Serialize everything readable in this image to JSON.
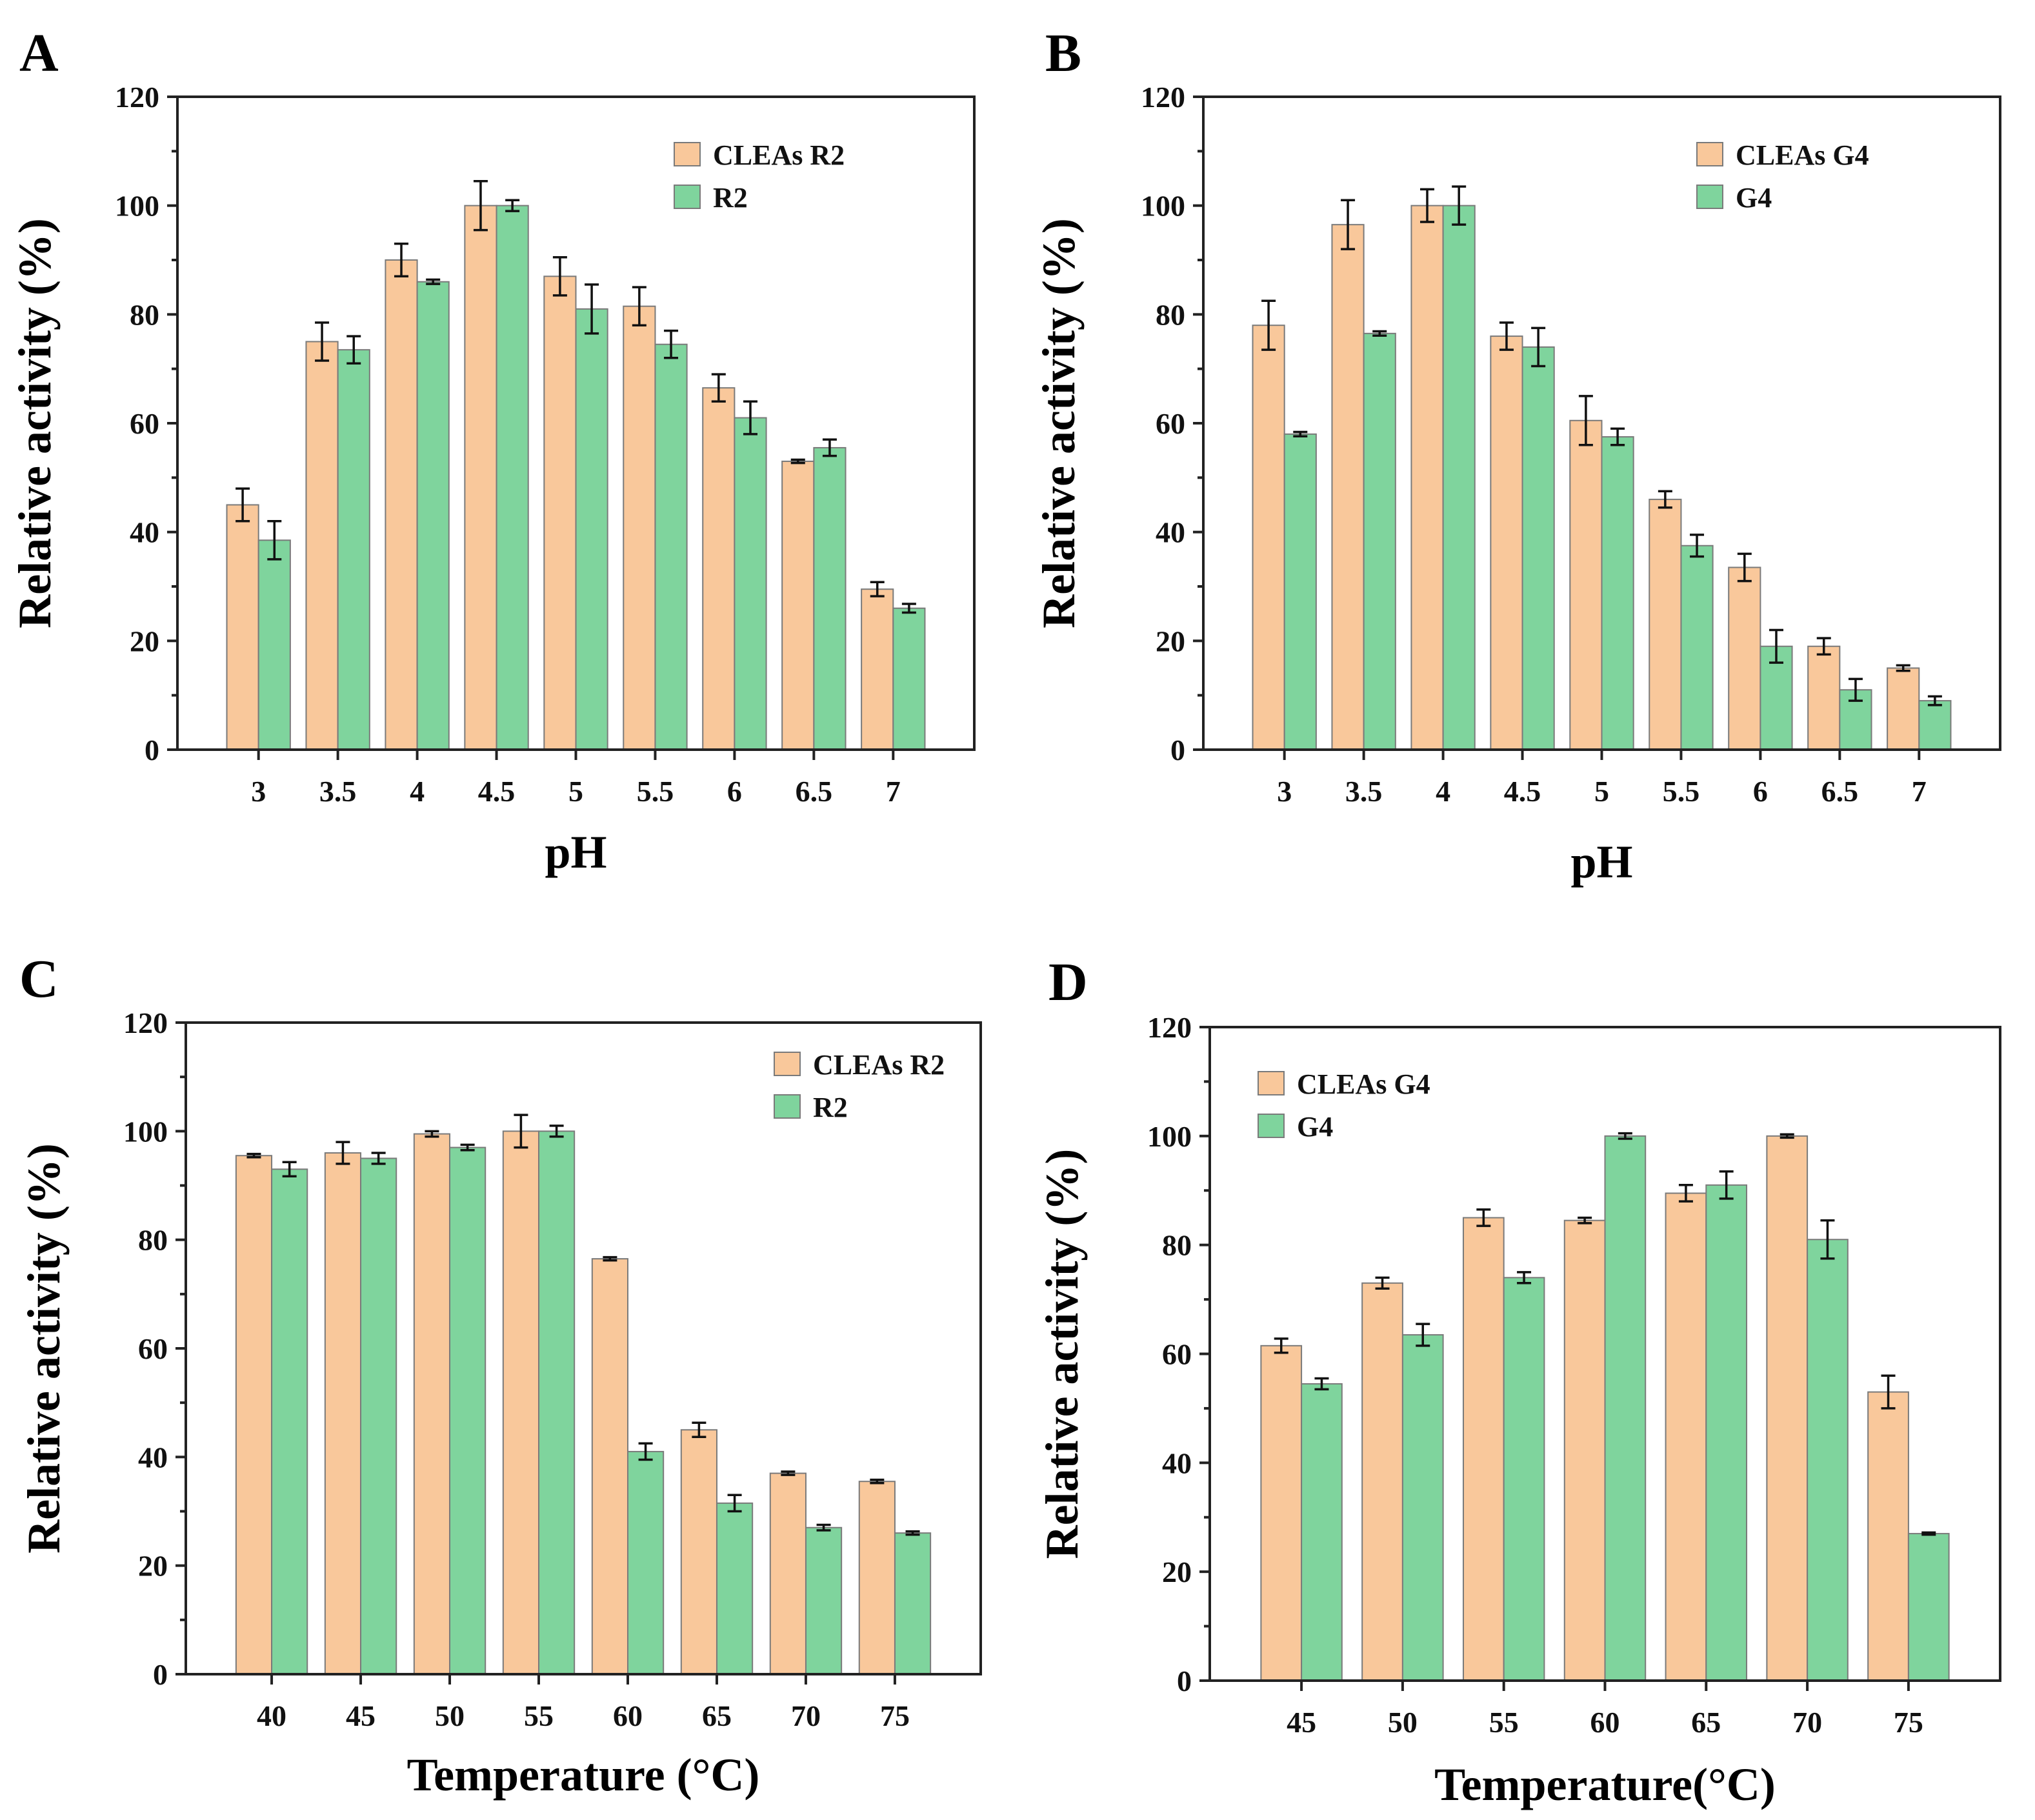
{
  "colors": {
    "clea": "#F9C89B",
    "free": "#7FD49D",
    "axis": "#222222"
  },
  "chart_data": [
    {
      "panel": "A",
      "type": "bar",
      "xlabel": "pH",
      "ylabel": "Relative activity (%)",
      "ylim": [
        0,
        120
      ],
      "yticks": [
        "0",
        "20",
        "40",
        "60",
        "80",
        "100",
        "120"
      ],
      "categories": [
        "3",
        "3.5",
        "4",
        "4.5",
        "5",
        "5.5",
        "6",
        "6.5",
        "7"
      ],
      "legend_position": "top-right",
      "series": [
        {
          "name": "CLEAs  R2",
          "values": [
            45,
            75,
            90,
            100,
            87,
            81.5,
            66.5,
            53,
            29.5
          ],
          "errors": [
            3,
            3.5,
            3,
            4.5,
            3.5,
            3.5,
            2.5,
            0.3,
            1.3
          ]
        },
        {
          "name": "R2",
          "values": [
            38.5,
            73.5,
            86,
            100,
            81,
            74.5,
            61,
            55.5,
            26
          ],
          "errors": [
            3.5,
            2.5,
            0.4,
            1,
            4.5,
            2.5,
            3,
            1.5,
            0.8
          ]
        }
      ]
    },
    {
      "panel": "B",
      "type": "bar",
      "xlabel": "pH",
      "ylabel": "Relative activity (%)",
      "ylim": [
        0,
        120
      ],
      "yticks": [
        "0",
        "20",
        "40",
        "60",
        "80",
        "100",
        "120"
      ],
      "categories": [
        "3",
        "3.5",
        "4",
        "4.5",
        "5",
        "5.5",
        "6",
        "6.5",
        "7"
      ],
      "legend_position": "top-right",
      "series": [
        {
          "name": "CLEAs  G4",
          "values": [
            78,
            96.5,
            100,
            76,
            60.5,
            46,
            33.5,
            19,
            15
          ],
          "errors": [
            4.5,
            4.5,
            3,
            2.5,
            4.5,
            1.5,
            2.5,
            1.5,
            0.5
          ]
        },
        {
          "name": "G4",
          "values": [
            58,
            76.5,
            100,
            74,
            57.5,
            37.5,
            19,
            11,
            9
          ],
          "errors": [
            0.4,
            0.4,
            3.5,
            3.5,
            1.5,
            2,
            3,
            2,
            0.8
          ]
        }
      ]
    },
    {
      "panel": "C",
      "type": "bar",
      "xlabel": "Temperature (°C)",
      "ylabel": "Relative activity (%)",
      "ylim": [
        0,
        120
      ],
      "yticks": [
        "0",
        "20",
        "40",
        "60",
        "80",
        "100",
        "120"
      ],
      "categories": [
        "40",
        "45",
        "50",
        "55",
        "60",
        "65",
        "70",
        "75"
      ],
      "legend_position": "top-right",
      "series": [
        {
          "name": "CLEAs R2",
          "values": [
            95.5,
            96,
            99.5,
            100,
            76.5,
            45,
            37,
            35.5
          ],
          "errors": [
            0.3,
            2,
            0.5,
            3,
            0.3,
            1.3,
            0.3,
            0.3
          ]
        },
        {
          "name": " R2",
          "values": [
            93,
            95,
            97,
            100,
            41,
            31.5,
            27,
            26
          ],
          "errors": [
            1.3,
            1,
            0.5,
            1,
            1.5,
            1.5,
            0.5,
            0.3
          ]
        }
      ]
    },
    {
      "panel": "D",
      "type": "bar",
      "xlabel": "Temperature(°C)",
      "ylabel": "Relative activity (%)",
      "ylim": [
        0,
        120
      ],
      "yticks": [
        "0",
        "20",
        "40",
        "60",
        "80",
        "100",
        "120"
      ],
      "categories": [
        "45",
        "50",
        "55",
        "60",
        "65",
        "70",
        "75"
      ],
      "legend_position": "top-left",
      "series": [
        {
          "name": "CLEAs G4",
          "values": [
            61.5,
            73,
            85,
            84.5,
            89.5,
            100,
            53
          ],
          "errors": [
            1.3,
            1,
            1.5,
            0.5,
            1.5,
            0.3,
            3
          ]
        },
        {
          "name": "G4",
          "values": [
            54.5,
            63.5,
            74,
            100,
            91,
            81,
            27
          ],
          "errors": [
            1,
            2,
            1,
            0.5,
            2.5,
            3.5,
            0.2
          ]
        }
      ]
    }
  ]
}
